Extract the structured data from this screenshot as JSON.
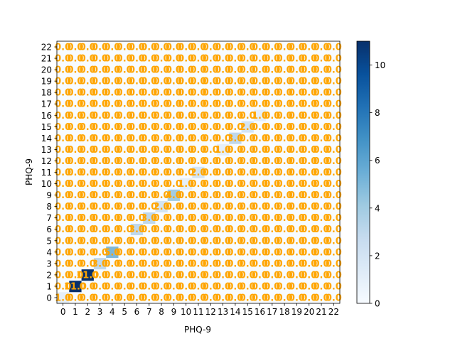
{
  "chart_data": {
    "type": "heatmap",
    "title": "",
    "xlabel": "PHQ-9",
    "ylabel": "PHQ-9",
    "x_categories": [
      "0",
      "1",
      "2",
      "3",
      "4",
      "5",
      "6",
      "7",
      "8",
      "9",
      "10",
      "11",
      "12",
      "13",
      "14",
      "15",
      "16",
      "17",
      "18",
      "19",
      "20",
      "21",
      "22"
    ],
    "y_categories": [
      "0",
      "1",
      "2",
      "3",
      "4",
      "5",
      "6",
      "7",
      "8",
      "9",
      "10",
      "11",
      "12",
      "13",
      "14",
      "15",
      "16",
      "17",
      "18",
      "19",
      "20",
      "21",
      "22"
    ],
    "cell_label_format": "0.0",
    "cells": [
      {
        "x": 0,
        "y": 0,
        "value": 1
      },
      {
        "x": 1,
        "y": 1,
        "value": 11
      },
      {
        "x": 2,
        "y": 2,
        "value": 11
      },
      {
        "x": 3,
        "y": 3,
        "value": 3
      },
      {
        "x": 4,
        "y": 4,
        "value": 5
      },
      {
        "x": 6,
        "y": 6,
        "value": 3
      },
      {
        "x": 7,
        "y": 7,
        "value": 3
      },
      {
        "x": 8,
        "y": 8,
        "value": 2
      },
      {
        "x": 9,
        "y": 9,
        "value": 4
      },
      {
        "x": 10,
        "y": 10,
        "value": 1
      },
      {
        "x": 11,
        "y": 11,
        "value": 2
      },
      {
        "x": 13,
        "y": 13,
        "value": 1
      },
      {
        "x": 14,
        "y": 14,
        "value": 3
      },
      {
        "x": 15,
        "y": 15,
        "value": 2
      },
      {
        "x": 16,
        "y": 16,
        "value": 1
      }
    ],
    "colorbar": {
      "min": 0,
      "max": 11,
      "ticks": [
        0,
        2,
        4,
        6,
        8,
        10
      ],
      "colormap": "Blues"
    },
    "annotation_color": "#ffa500"
  }
}
